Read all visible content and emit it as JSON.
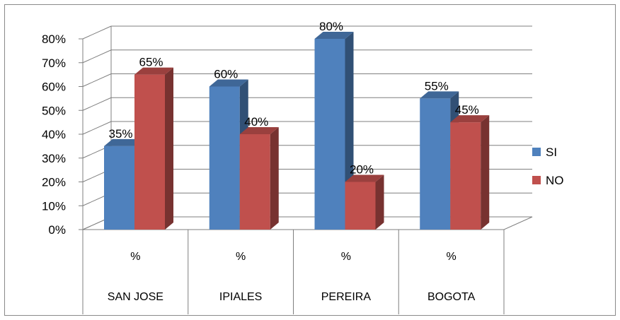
{
  "chart_data": {
    "type": "bar",
    "title": "",
    "xlabel": "",
    "ylabel": "",
    "categories": [
      "SAN JOSE",
      "IPIALES",
      "PEREIRA",
      "BOGOTA"
    ],
    "sub_categories": [
      "%",
      "%",
      "%",
      "%"
    ],
    "series": [
      {
        "name": "SI",
        "color": "#4f81bd",
        "values": [
          35,
          60,
          80,
          55
        ],
        "labels": [
          "35%",
          "60%",
          "80%",
          "55%"
        ]
      },
      {
        "name": "NO",
        "color": "#c0504d",
        "values": [
          65,
          40,
          20,
          45
        ],
        "labels": [
          "65%",
          "40%",
          "20%",
          "45%"
        ]
      }
    ],
    "yticks": [
      "0%",
      "10%",
      "20%",
      "30%",
      "40%",
      "50%",
      "60%",
      "70%",
      "80%"
    ],
    "ylim": [
      0,
      80
    ],
    "grid": true,
    "legend_position": "right",
    "style": "3d-clustered-column"
  }
}
